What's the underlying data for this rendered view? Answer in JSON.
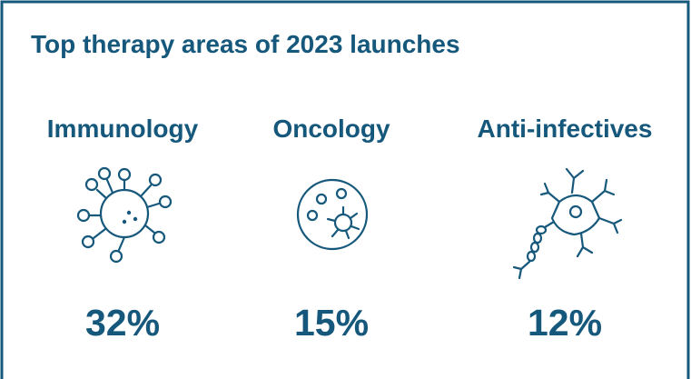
{
  "title": "Top therapy areas of 2023 launches",
  "areas": [
    {
      "name": "Immunology",
      "share": "32%"
    },
    {
      "name": "Oncology",
      "share": "15%"
    },
    {
      "name": "Anti-infectives",
      "share": "12%"
    }
  ]
}
